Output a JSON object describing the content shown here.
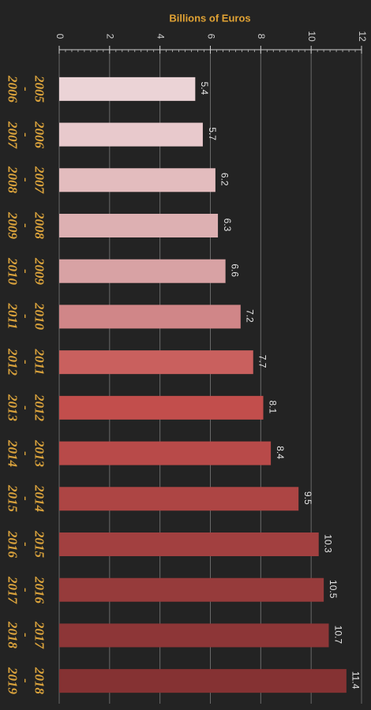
{
  "chart_data": {
    "type": "bar",
    "orientation": "horizontal",
    "x_label": "Billions of Euros",
    "categories": [
      "2005\n-\n2006",
      "2006\n-\n2007",
      "2007\n-\n2008",
      "2008\n-\n2009",
      "2009\n-\n2010",
      "2010\n-\n2011",
      "2011\n-\n2012",
      "2012\n-\n2013",
      "2013\n-\n2014",
      "2014\n-\n2015",
      "2015\n-\n2016",
      "2016\n-\n2017",
      "2017\n-\n2018",
      "2018\n-\n2019"
    ],
    "values": [
      5.4,
      5.7,
      6.2,
      6.3,
      6.6,
      7.2,
      7.7,
      8.1,
      8.4,
      9.5,
      10.3,
      10.5,
      10.7,
      11.4
    ],
    "colors": [
      "#ebd3d6",
      "#e8c9cc",
      "#e3bcbe",
      "#ddb0b2",
      "#d8a2a4",
      "#d08688",
      "#c9605e",
      "#c24e4c",
      "#b84a49",
      "#ad4544",
      "#a24040",
      "#963b3b",
      "#8d3637",
      "#853233"
    ],
    "xlim": [
      0,
      12
    ],
    "xticks": [
      0,
      2,
      4,
      6,
      8,
      10,
      12
    ],
    "grid": true
  }
}
